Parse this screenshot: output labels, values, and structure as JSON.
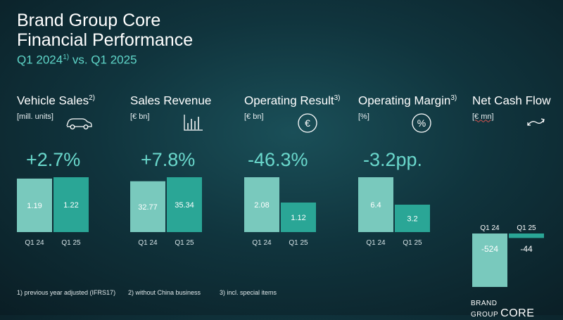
{
  "header": {
    "line1": "Brand Group Core",
    "line2": "Financial Performance",
    "period_a": "Q1 2024",
    "period_sup": "1)",
    "period_b": " vs. Q1 2025"
  },
  "kpis": [
    {
      "name": "Vehicle Sales",
      "sup": "2)",
      "unit": "[mill. units]",
      "change": "+2.7%",
      "icon": "car-icon"
    },
    {
      "name": "Sales Revenue",
      "sup": "",
      "unit": "[€ bn]",
      "change": "+7.8%",
      "icon": "bar-chart-icon"
    },
    {
      "name": "Operating Result",
      "sup": "3)",
      "unit": "[€ bn]",
      "change": "-46.3%",
      "icon": "euro-circle-icon"
    },
    {
      "name": "Operating Margin",
      "sup": "3)",
      "unit": "[%]",
      "change": "-3.2pp.",
      "icon": "percent-circle-icon"
    },
    {
      "name": "Net Cash Flow",
      "sup": "",
      "unit": "[€ mn]",
      "change": "",
      "icon": "cash-flow-arrows-icon"
    }
  ],
  "chart_data": [
    {
      "type": "bar",
      "title": "Vehicle Sales",
      "unit": "mill. units",
      "categories": [
        "Q1 24",
        "Q1 25"
      ],
      "values": [
        1.19,
        1.22
      ],
      "labels": [
        "1.19",
        "1.22"
      ]
    },
    {
      "type": "bar",
      "title": "Sales Revenue",
      "unit": "€ bn",
      "categories": [
        "Q1 24",
        "Q1 25"
      ],
      "values": [
        32.77,
        35.34
      ],
      "labels": [
        "32.77",
        "35.34"
      ]
    },
    {
      "type": "bar",
      "title": "Operating Result",
      "unit": "€ bn",
      "categories": [
        "Q1 24",
        "Q1 25"
      ],
      "values": [
        2.08,
        1.12
      ],
      "labels": [
        "2.08",
        "1.12"
      ]
    },
    {
      "type": "bar",
      "title": "Operating Margin",
      "unit": "%",
      "categories": [
        "Q1 24",
        "Q1 25"
      ],
      "values": [
        6.4,
        3.2
      ],
      "labels": [
        "6.4",
        "3.2"
      ]
    },
    {
      "type": "bar",
      "title": "Net Cash Flow",
      "unit": "€ mn",
      "categories": [
        "Q1 24",
        "Q1 25"
      ],
      "values": [
        -524,
        -44
      ],
      "labels": [
        "-524",
        "-44"
      ],
      "category_labels": [
        "Q1 24",
        "Q1 25"
      ]
    }
  ],
  "colors": {
    "bar_q1_24": "#79c9bd",
    "bar_q1_25": "#2aa696",
    "accent": "#5fd6c9"
  },
  "footnotes": {
    "f1": "1) previous year adjusted (IFRS17)",
    "f2": "2) without China business",
    "f3": "3) incl. special items"
  },
  "brand": {
    "group": "BRAND GROUP",
    "core": "CORE"
  }
}
